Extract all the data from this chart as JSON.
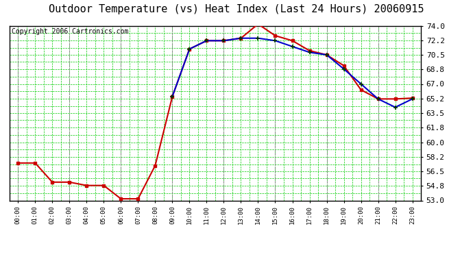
{
  "title": "Outdoor Temperature (vs) Heat Index (Last 24 Hours) 20060915",
  "copyright": "Copyright 2006 Cartronics.com",
  "hours": [
    "00:00",
    "01:00",
    "02:00",
    "03:00",
    "04:00",
    "05:00",
    "06:00",
    "07:00",
    "08:00",
    "09:00",
    "10:00",
    "11:00",
    "12:00",
    "13:00",
    "14:00",
    "15:00",
    "16:00",
    "17:00",
    "18:00",
    "19:00",
    "20:00",
    "21:00",
    "22:00",
    "23:00"
  ],
  "temp": [
    57.5,
    57.5,
    55.2,
    55.2,
    54.8,
    54.8,
    53.2,
    53.2,
    57.2,
    65.5,
    71.2,
    72.2,
    72.2,
    72.5,
    74.2,
    72.8,
    72.2,
    71.0,
    70.5,
    69.2,
    66.3,
    65.2,
    65.2,
    65.3
  ],
  "heat_index": [
    null,
    null,
    null,
    null,
    null,
    null,
    null,
    null,
    null,
    65.5,
    71.2,
    72.2,
    72.2,
    72.5,
    72.5,
    72.2,
    71.5,
    70.8,
    70.5,
    68.8,
    67.0,
    65.2,
    64.2,
    65.2
  ],
  "ylim_min": 53.0,
  "ylim_max": 74.0,
  "yticks": [
    53.0,
    54.8,
    56.5,
    58.2,
    60.0,
    61.8,
    63.5,
    65.2,
    67.0,
    68.8,
    70.5,
    72.2,
    74.0
  ],
  "bg_color": "#ffffff",
  "plot_bg": "#ffffff",
  "grid_color_major": "#888888",
  "grid_color_minor": "#00cc00",
  "temp_color": "#cc0000",
  "heat_color": "#0000cc",
  "marker_dark": "#003300",
  "title_fontsize": 11,
  "copyright_fontsize": 7
}
